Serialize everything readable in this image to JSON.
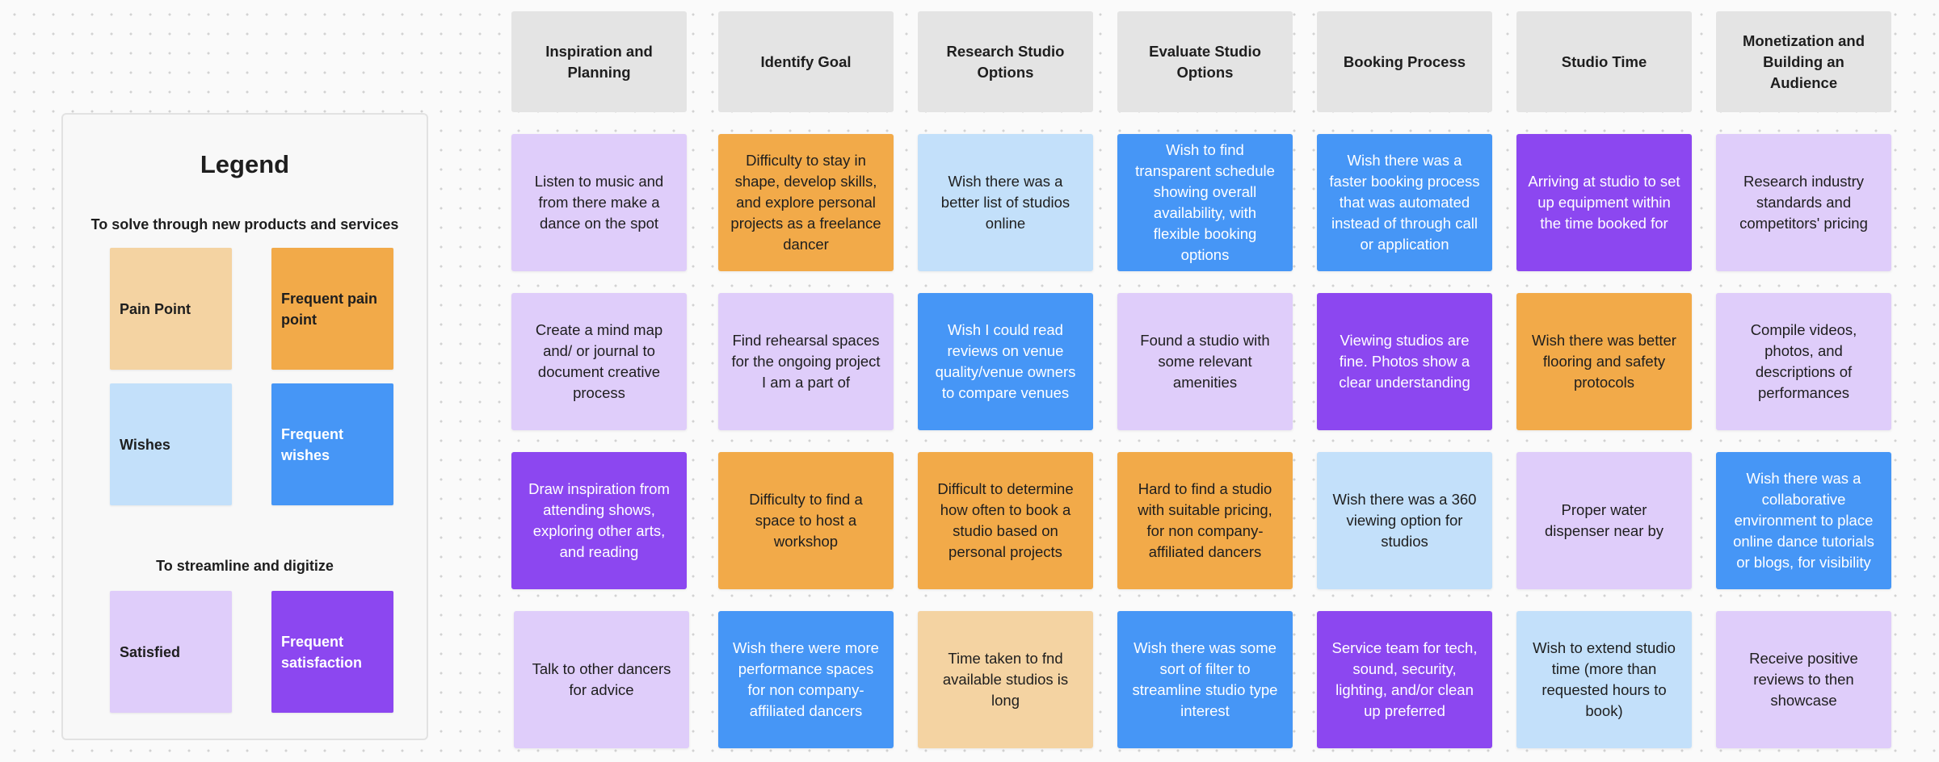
{
  "legend": {
    "title": "Legend",
    "section_solve": "To solve through new products and services",
    "section_streamline": "To streamline and digitize",
    "pain_point": "Pain Point",
    "frequent_pain_point": "Frequent pain point",
    "wishes": "Wishes",
    "frequent_wishes": "Frequent wishes",
    "satisfied": "Satisfied",
    "frequent_satisfaction": "Frequent satisfaction"
  },
  "colors": {
    "pain_point": "#f4d3a2",
    "frequent_pain_point": "#f2aa49",
    "wishes": "#c3e0fa",
    "frequent_wishes": "#4696f6",
    "satisfied": "#dfcdfa",
    "frequent_satisfaction": "#8c47f0",
    "header": "#e4e4e4"
  },
  "columns": [
    {
      "header": "Inspiration and Planning",
      "notes": [
        "Listen to music and from there make a dance on the spot",
        "Create a mind map and/ or journal to document creative process",
        "Draw inspiration from attending shows, exploring other arts, and reading",
        "Talk to other dancers for advice"
      ]
    },
    {
      "header": "Identify Goal",
      "notes": [
        "Difficulty to stay in shape, develop skills, and explore personal projects as a freelance dancer",
        "Find rehearsal spaces for the ongoing project I am a part of",
        "Difficulty to find a space to host a workshop",
        "Wish there were more performance spaces for non company-affiliated dancers"
      ]
    },
    {
      "header": "Research Studio Options",
      "notes": [
        "Wish there was a better list of studios online",
        "Wish I could read reviews on venue quality/venue owners to compare venues",
        "Difficult to determine how often to book a studio based on personal projects",
        "Time taken to fnd available studios is long"
      ]
    },
    {
      "header": "Evaluate Studio Options",
      "notes": [
        "Wish to find transparent schedule showing overall availability, with flexible booking options",
        "Found a studio with some relevant amenities",
        "Hard to find a studio with suitable pricing, for non company-affiliated dancers",
        "Wish there was some sort of filter to streamline studio type interest"
      ]
    },
    {
      "header": "Booking Process",
      "notes": [
        "Wish there was a faster booking process that was automated instead of through call or application",
        "Viewing studios are fine. Photos show a clear understanding",
        "Wish there was a 360 viewing option for studios",
        "Service team for tech, sound, security, lighting, and/or clean up preferred"
      ]
    },
    {
      "header": "Studio Time",
      "notes": [
        "Arriving at studio to set up equipment within the time booked for",
        "Wish there was better flooring and safety protocols",
        "Proper water dispenser near by",
        "Wish to extend studio time (more than requested hours to book)"
      ]
    },
    {
      "header": "Monetization and Building an Audience",
      "notes": [
        "Research industry standards and competitors' pricing",
        "Compile videos, photos, and descriptions of performances",
        "Wish there was a collaborative environment to place online dance tutorials or blogs, for visibility",
        "Receive positive reviews to then showcase"
      ]
    }
  ]
}
